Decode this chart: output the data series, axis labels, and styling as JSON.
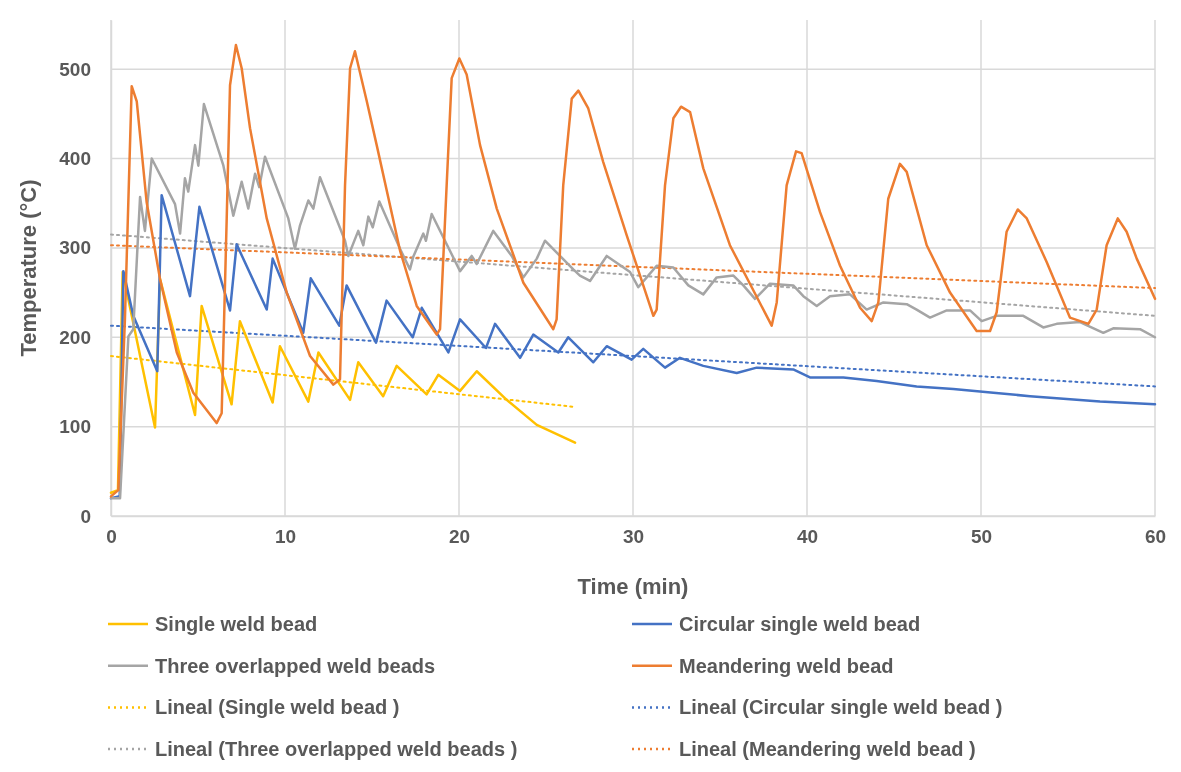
{
  "chart_data": {
    "type": "line",
    "xlabel": "Time (min)",
    "ylabel": "Temperature (°C)",
    "xlim": [
      0,
      60
    ],
    "xticks": [
      0,
      10,
      20,
      30,
      40,
      50,
      60
    ],
    "ylim": [
      0,
      555
    ],
    "yticks": [
      0,
      100,
      200,
      300,
      400,
      500
    ],
    "grid": true,
    "legend": "bottom",
    "marker": "none",
    "series": [
      {
        "name": "Single weld bead",
        "color": "#ffc000",
        "line_style": "solid",
        "x": [
          0,
          0.4,
          0.67,
          2.53,
          2.82,
          4.83,
          5.21,
          6.93,
          7.41,
          9.29,
          9.71,
          11.34,
          11.92,
          13.74,
          14.21,
          15.64,
          16.42,
          18.14,
          18.81,
          20.06,
          21.02,
          22.74,
          24.47,
          26.67
        ],
        "values": [
          26,
          29,
          273,
          99,
          265,
          113,
          235,
          125,
          218,
          127,
          190,
          128,
          183,
          130,
          172,
          134,
          168,
          136,
          158,
          140,
          162,
          130,
          102,
          82
        ]
      },
      {
        "name": "Circular single weld bead",
        "color": "#4472c4",
        "line_style": "solid",
        "x": [
          0,
          0.5,
          0.71,
          1.28,
          2.66,
          2.91,
          4.54,
          5.08,
          6.84,
          7.22,
          8.95,
          9.29,
          11.05,
          11.48,
          13.12,
          13.54,
          15.23,
          15.84,
          17.34,
          17.86,
          19.39,
          20.06,
          21.55,
          22.07,
          23.51,
          24.27,
          25.71,
          26.28,
          27.72,
          28.49,
          29.92,
          30.59,
          31.84,
          32.7,
          34.04,
          35.96,
          37.11,
          39.21,
          40.17,
          42.09,
          44,
          46.3,
          48.41,
          50.71,
          52.82,
          56.84,
          60
        ],
        "values": [
          20,
          22,
          274,
          224,
          162,
          359,
          246,
          346,
          230,
          304,
          231,
          288,
          205,
          266,
          213,
          258,
          194,
          241,
          200,
          233,
          183,
          220,
          188,
          215,
          177,
          203,
          183,
          200,
          172,
          190,
          175,
          187,
          166,
          177,
          168,
          160,
          166,
          164,
          155,
          155,
          151,
          145,
          142,
          138,
          134,
          128,
          125
        ]
      },
      {
        "name": "Three overlapped weld beads",
        "color": "#a5a5a5",
        "line_style": "solid",
        "x": [
          0,
          0.52,
          1,
          1.28,
          1.67,
          1.95,
          2.34,
          3.68,
          3.97,
          4.25,
          4.44,
          4.83,
          5.02,
          5.34,
          6.46,
          7.03,
          7.51,
          7.89,
          8.28,
          8.52,
          8.85,
          10.19,
          10.57,
          10.86,
          11.34,
          11.63,
          12.01,
          13.45,
          13.64,
          14.21,
          14.5,
          14.79,
          15.04,
          15.42,
          16.61,
          17.18,
          17.37,
          17.95,
          18.1,
          18.43,
          20.06,
          20.73,
          21.02,
          21.97,
          23.03,
          23.7,
          24.47,
          24.94,
          26.57,
          26.95,
          27.53,
          28.49,
          29.83,
          30.3,
          30.79,
          31.36,
          32.32,
          33.18,
          34.04,
          34.81,
          35.77,
          36.34,
          37.01,
          37.87,
          39.21,
          39.79,
          40.56,
          41.32,
          42.47,
          43.43,
          44.39,
          45.73,
          46.3,
          47.07,
          48.03,
          49.37,
          50.04,
          50.9,
          52.43,
          53.58,
          54.35,
          55.69,
          57.03,
          57.6,
          59.14,
          60
        ],
        "values": [
          20,
          20,
          201,
          209,
          357,
          319,
          400,
          349,
          316,
          378,
          363,
          415,
          392,
          461,
          392,
          336,
          374,
          344,
          383,
          368,
          402,
          333,
          299,
          325,
          353,
          344,
          379,
          308,
          291,
          319,
          303,
          335,
          323,
          352,
          299,
          276,
          290,
          316,
          308,
          338,
          274,
          291,
          282,
          319,
          291,
          267,
          288,
          308,
          276,
          269,
          263,
          291,
          273,
          256,
          267,
          280,
          278,
          258,
          248,
          267,
          269,
          258,
          243,
          260,
          258,
          246,
          235,
          246,
          248,
          231,
          239,
          237,
          231,
          222,
          230,
          230,
          218,
          224,
          224,
          211,
          215,
          217,
          205,
          210,
          209,
          200
        ]
      },
      {
        "name": "Meandering weld bead",
        "color": "#ed7d31",
        "line_style": "solid",
        "x": [
          0,
          0.42,
          0.8,
          1.19,
          1.48,
          2.05,
          2.82,
          3.78,
          4.73,
          6.07,
          6.36,
          6.65,
          6.84,
          7.18,
          7.51,
          7.99,
          8.95,
          10.1,
          11.44,
          12.78,
          13.16,
          13.45,
          13.74,
          14.02,
          14.7,
          15.27,
          16.61,
          17.57,
          18.72,
          18.91,
          19.29,
          19.58,
          20.02,
          20.44,
          21.21,
          22.17,
          23.7,
          25.42,
          25.61,
          25.99,
          26.48,
          26.86,
          27.43,
          28.29,
          29.64,
          31.17,
          31.36,
          31.84,
          32.32,
          32.76,
          33.28,
          34.04,
          35.57,
          37.97,
          38.26,
          38.83,
          39.37,
          39.69,
          40.75,
          41.9,
          43.05,
          43.72,
          44.1,
          44.67,
          45.34,
          45.73,
          46.88,
          48.22,
          49.75,
          50.52,
          50.9,
          51.47,
          52.11,
          52.63,
          53.78,
          55.11,
          56.17,
          56.65,
          57.22,
          57.86,
          58.37,
          58.95,
          60
        ],
        "values": [
          22,
          29,
          220,
          481,
          464,
          351,
          265,
          183,
          138,
          104,
          115,
          333,
          482,
          527,
          501,
          434,
          333,
          250,
          179,
          147,
          153,
          370,
          501,
          520,
          464,
          415,
          297,
          235,
          203,
          209,
          370,
          490,
          512,
          494,
          415,
          344,
          261,
          209,
          220,
          370,
          467,
          476,
          456,
          396,
          314,
          224,
          231,
          370,
          445,
          458,
          452,
          389,
          303,
          213,
          239,
          370,
          408,
          406,
          340,
          280,
          233,
          218,
          239,
          355,
          394,
          385,
          303,
          250,
          207,
          207,
          228,
          318,
          343,
          333,
          284,
          222,
          215,
          231,
          303,
          333,
          318,
          288,
          243
        ]
      },
      {
        "name": "Lineal (Single weld bead )",
        "color": "#ffc000",
        "line_style": "dotted",
        "x": [
          0,
          26.67
        ],
        "values": [
          179,
          122
        ]
      },
      {
        "name": "Lineal (Circular single weld bead )",
        "color": "#4472c4",
        "line_style": "dotted",
        "x": [
          0,
          60
        ],
        "values": [
          213,
          145
        ]
      },
      {
        "name": "Lineal (Three overlapped weld beads )",
        "color": "#a5a5a5",
        "line_style": "dotted",
        "x": [
          0,
          60
        ],
        "values": [
          315,
          224
        ]
      },
      {
        "name": "Lineal (Meandering weld bead )",
        "color": "#ed7d31",
        "line_style": "dotted",
        "x": [
          0,
          60
        ],
        "values": [
          303,
          255
        ]
      }
    ]
  }
}
